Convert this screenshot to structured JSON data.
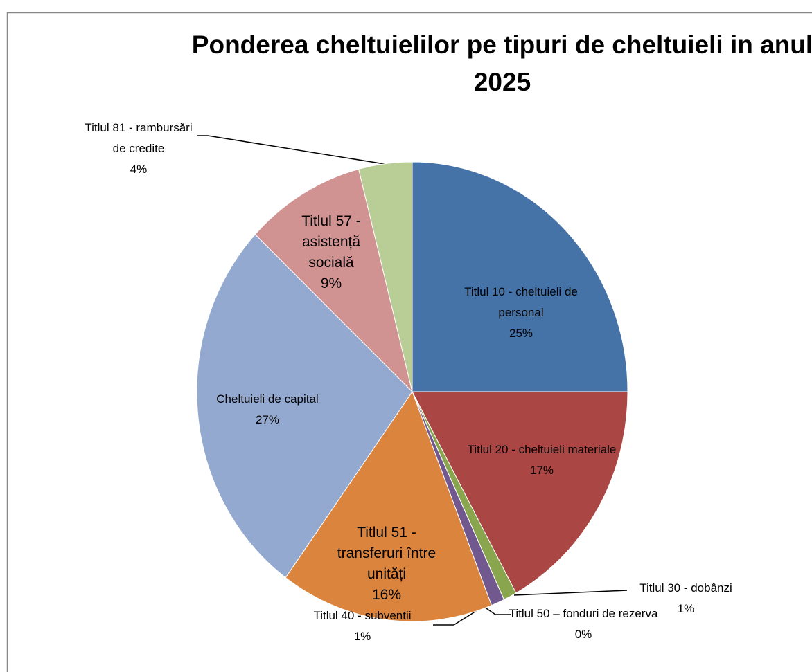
{
  "chart_data": {
    "type": "pie",
    "title": "Ponderea cheltuielilor pe tipuri de cheltuieli  in anul 2025",
    "categories": [
      "Titlul 10 - cheltuieli de personal",
      "Titlul 20 - cheltuieli materiale",
      "Titlul 30 - dobânzi",
      "Titlul 50 – fonduri de rezerva",
      "Titlul 40 - subventii",
      "Titlul 51 - transferuri între unități",
      "Cheltuieli de capital",
      "Titlul 57 - asistență socială",
      "Titlul 81 - rambursări de credite"
    ],
    "values": [
      25,
      17,
      1,
      0,
      1,
      16,
      27,
      9,
      4
    ],
    "value_labels": [
      "25%",
      "17%",
      "1%",
      "0%",
      "1%",
      "16%",
      "27%",
      "9%",
      "4%"
    ],
    "colors": [
      "#4572a7",
      "#aa4643",
      "#89a54e",
      "#4bacc6",
      "#71588f",
      "#db843d",
      "#93a9cf",
      "#d19392",
      "#b9cd96"
    ]
  }
}
